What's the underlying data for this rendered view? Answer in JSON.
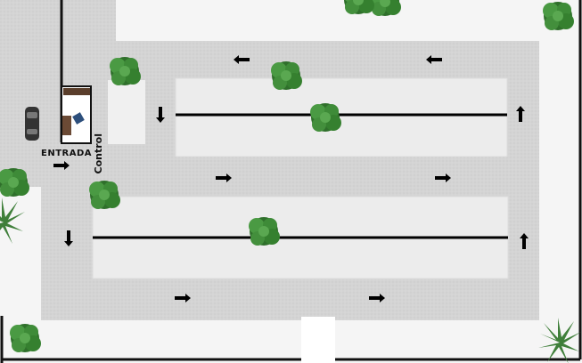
{
  "labels": {
    "entrada": "ENTRADA",
    "control": "Control"
  },
  "colors": {
    "asphalt": "#d3d3d3",
    "island": "#ececec",
    "sidewalk": "#f4f4f4",
    "wall": "#111111",
    "tree": "#3f8f3a",
    "car": "#3a3a3a"
  },
  "icons": {
    "arrow": "arrow-icon",
    "tree": "tree-icon",
    "car": "car-icon"
  }
}
